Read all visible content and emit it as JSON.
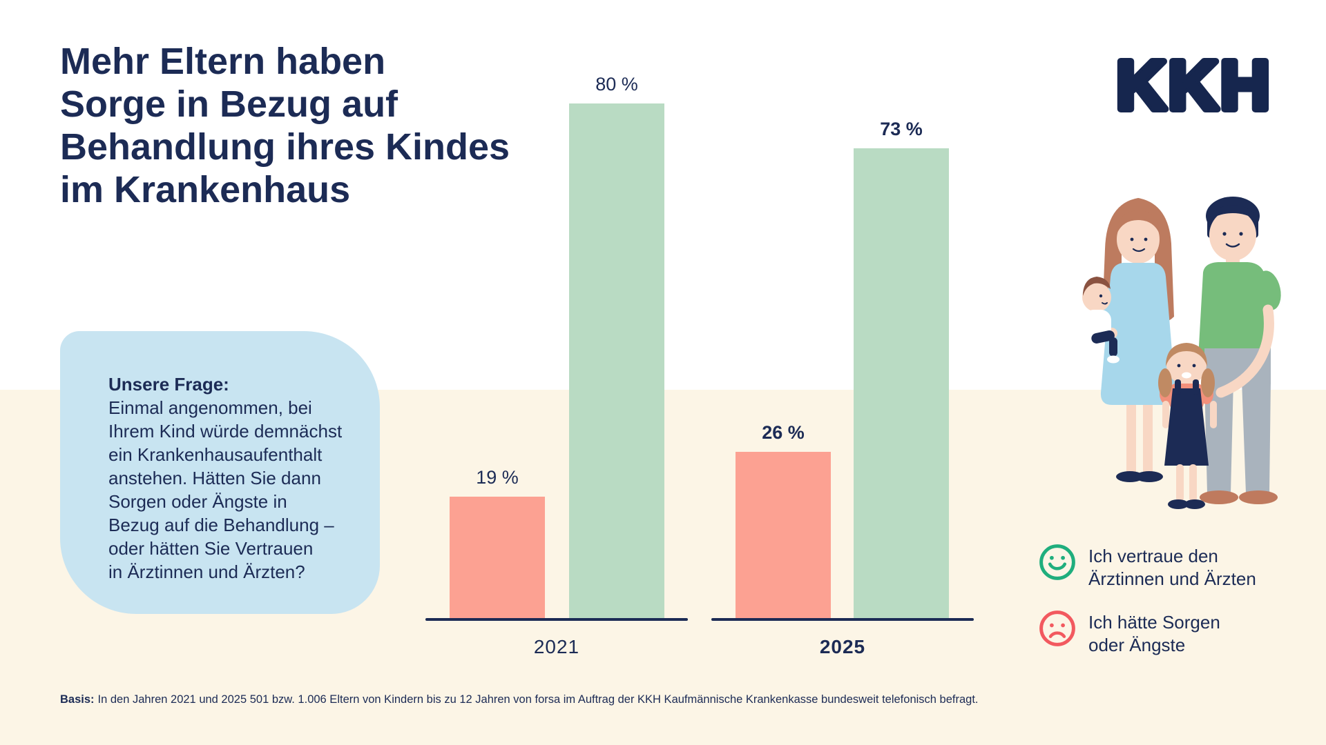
{
  "title": {
    "lines": [
      "Mehr Eltern haben",
      "Sorge in Bezug auf",
      "Behandlung ihres Kindes",
      "im Krankenhaus"
    ]
  },
  "logo": {
    "text": "KKH"
  },
  "question": {
    "heading": "Unsere Frage:",
    "lines": [
      "Einmal angenommen, bei",
      "Ihrem Kind würde demnächst",
      "ein Krankenhausaufenthalt",
      "anstehen. Hätten Sie dann",
      "Sorgen oder Ängste in",
      "Bezug auf die Behandlung –",
      "oder hätten Sie Vertrauen",
      "in Ärztinnen und Ärzten?"
    ]
  },
  "chart_data": {
    "type": "bar",
    "title": "Mehr Eltern haben Sorge in Bezug auf Behandlung ihres Kindes im Krankenhaus",
    "unit": "%",
    "ylim": [
      0,
      100
    ],
    "grid": false,
    "legend_position": "right",
    "categories": [
      "2021",
      "2025"
    ],
    "series": [
      {
        "name": "Ich hätte Sorgen oder Ängste",
        "color": "#fca192",
        "values": [
          19,
          26
        ]
      },
      {
        "name": "Ich vertraue den Ärztinnen und Ärzten",
        "color": "#b9dbc3",
        "values": [
          80,
          73
        ]
      }
    ],
    "bars": [
      {
        "group": "2021",
        "series": "Ich hätte Sorgen oder Ängste",
        "value": 19,
        "display": "19 %",
        "color": "#fca192",
        "emphasis": false
      },
      {
        "group": "2021",
        "series": "Ich vertraue den Ärztinnen und Ärzten",
        "value": 80,
        "display": "80 %",
        "color": "#b9dbc3",
        "emphasis": false
      },
      {
        "group": "2025",
        "series": "Ich hätte Sorgen oder Ängste",
        "value": 26,
        "display": "26 %",
        "color": "#fca192",
        "emphasis": true
      },
      {
        "group": "2025",
        "series": "Ich vertraue den Ärztinnen und Ärzten",
        "value": 73,
        "display": "73 %",
        "color": "#b9dbc3",
        "emphasis": true
      }
    ],
    "x_labels": [
      {
        "text": "2021",
        "emphasis": false
      },
      {
        "text": "2025",
        "emphasis": true
      }
    ],
    "legend": [
      {
        "icon": "smiley-happy-icon",
        "color": "#1fae7d",
        "lines": [
          "Ich vertraue den",
          "Ärztinnen und Ärzten"
        ]
      },
      {
        "icon": "smiley-sad-icon",
        "color": "#f2595f",
        "lines": [
          "Ich hätte Sorgen",
          "oder Ängste"
        ]
      }
    ]
  },
  "footer": {
    "label": "Basis:",
    "text": "In den Jahren 2021 und 2025 501 bzw. 1.006 Eltern von Kindern bis zu 12 Jahren von forsa im Auftrag der KKH Kaufmännische Krankenkasse bundesweit telefonisch befragt."
  },
  "colors": {
    "navy_text": "#1c2b55",
    "background_top": "#ffffff",
    "background_bottom": "#fcf5e6",
    "question_box": "#c8e4f1",
    "bar_salmon": "#fca192",
    "bar_green": "#b9dbc3",
    "legend_green": "#1fae7d",
    "legend_red": "#f2595f"
  }
}
